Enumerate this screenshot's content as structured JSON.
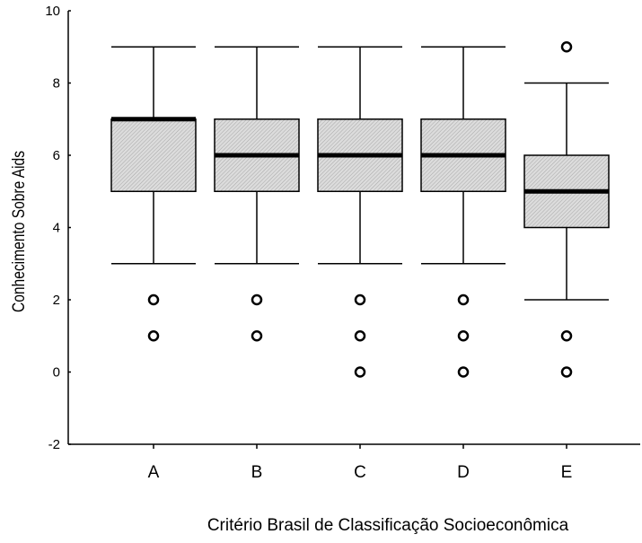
{
  "chart_data": {
    "type": "box",
    "xlabel": "Critério Brasil de Classificação Socioeconômica",
    "ylabel": "Conhecimento Sobre Aids",
    "ylim": [
      -2,
      10
    ],
    "yticks": [
      -2,
      0,
      2,
      4,
      6,
      8,
      10
    ],
    "categories": [
      "A",
      "B",
      "C",
      "D",
      "E"
    ],
    "boxes": [
      {
        "category": "A",
        "whisker_low": 3,
        "q1": 5,
        "median": 7,
        "q3": 7,
        "whisker_high": 9,
        "outliers": [
          2,
          1
        ]
      },
      {
        "category": "B",
        "whisker_low": 3,
        "q1": 5,
        "median": 6,
        "q3": 7,
        "whisker_high": 9,
        "outliers": [
          2,
          1
        ]
      },
      {
        "category": "C",
        "whisker_low": 3,
        "q1": 5,
        "median": 6,
        "q3": 7,
        "whisker_high": 9,
        "outliers": [
          2,
          1,
          0
        ]
      },
      {
        "category": "D",
        "whisker_low": 3,
        "q1": 5,
        "median": 6,
        "q3": 7,
        "whisker_high": 9,
        "outliers": [
          2,
          1,
          0
        ]
      },
      {
        "category": "E",
        "whisker_low": 2,
        "q1": 4,
        "median": 5,
        "q3": 6,
        "whisker_high": 8,
        "outliers": [
          9,
          1,
          0
        ]
      }
    ],
    "colors": {
      "box_fill": "#d9d9d9",
      "hatch": "#9a9a9a",
      "line": "#000000"
    }
  }
}
